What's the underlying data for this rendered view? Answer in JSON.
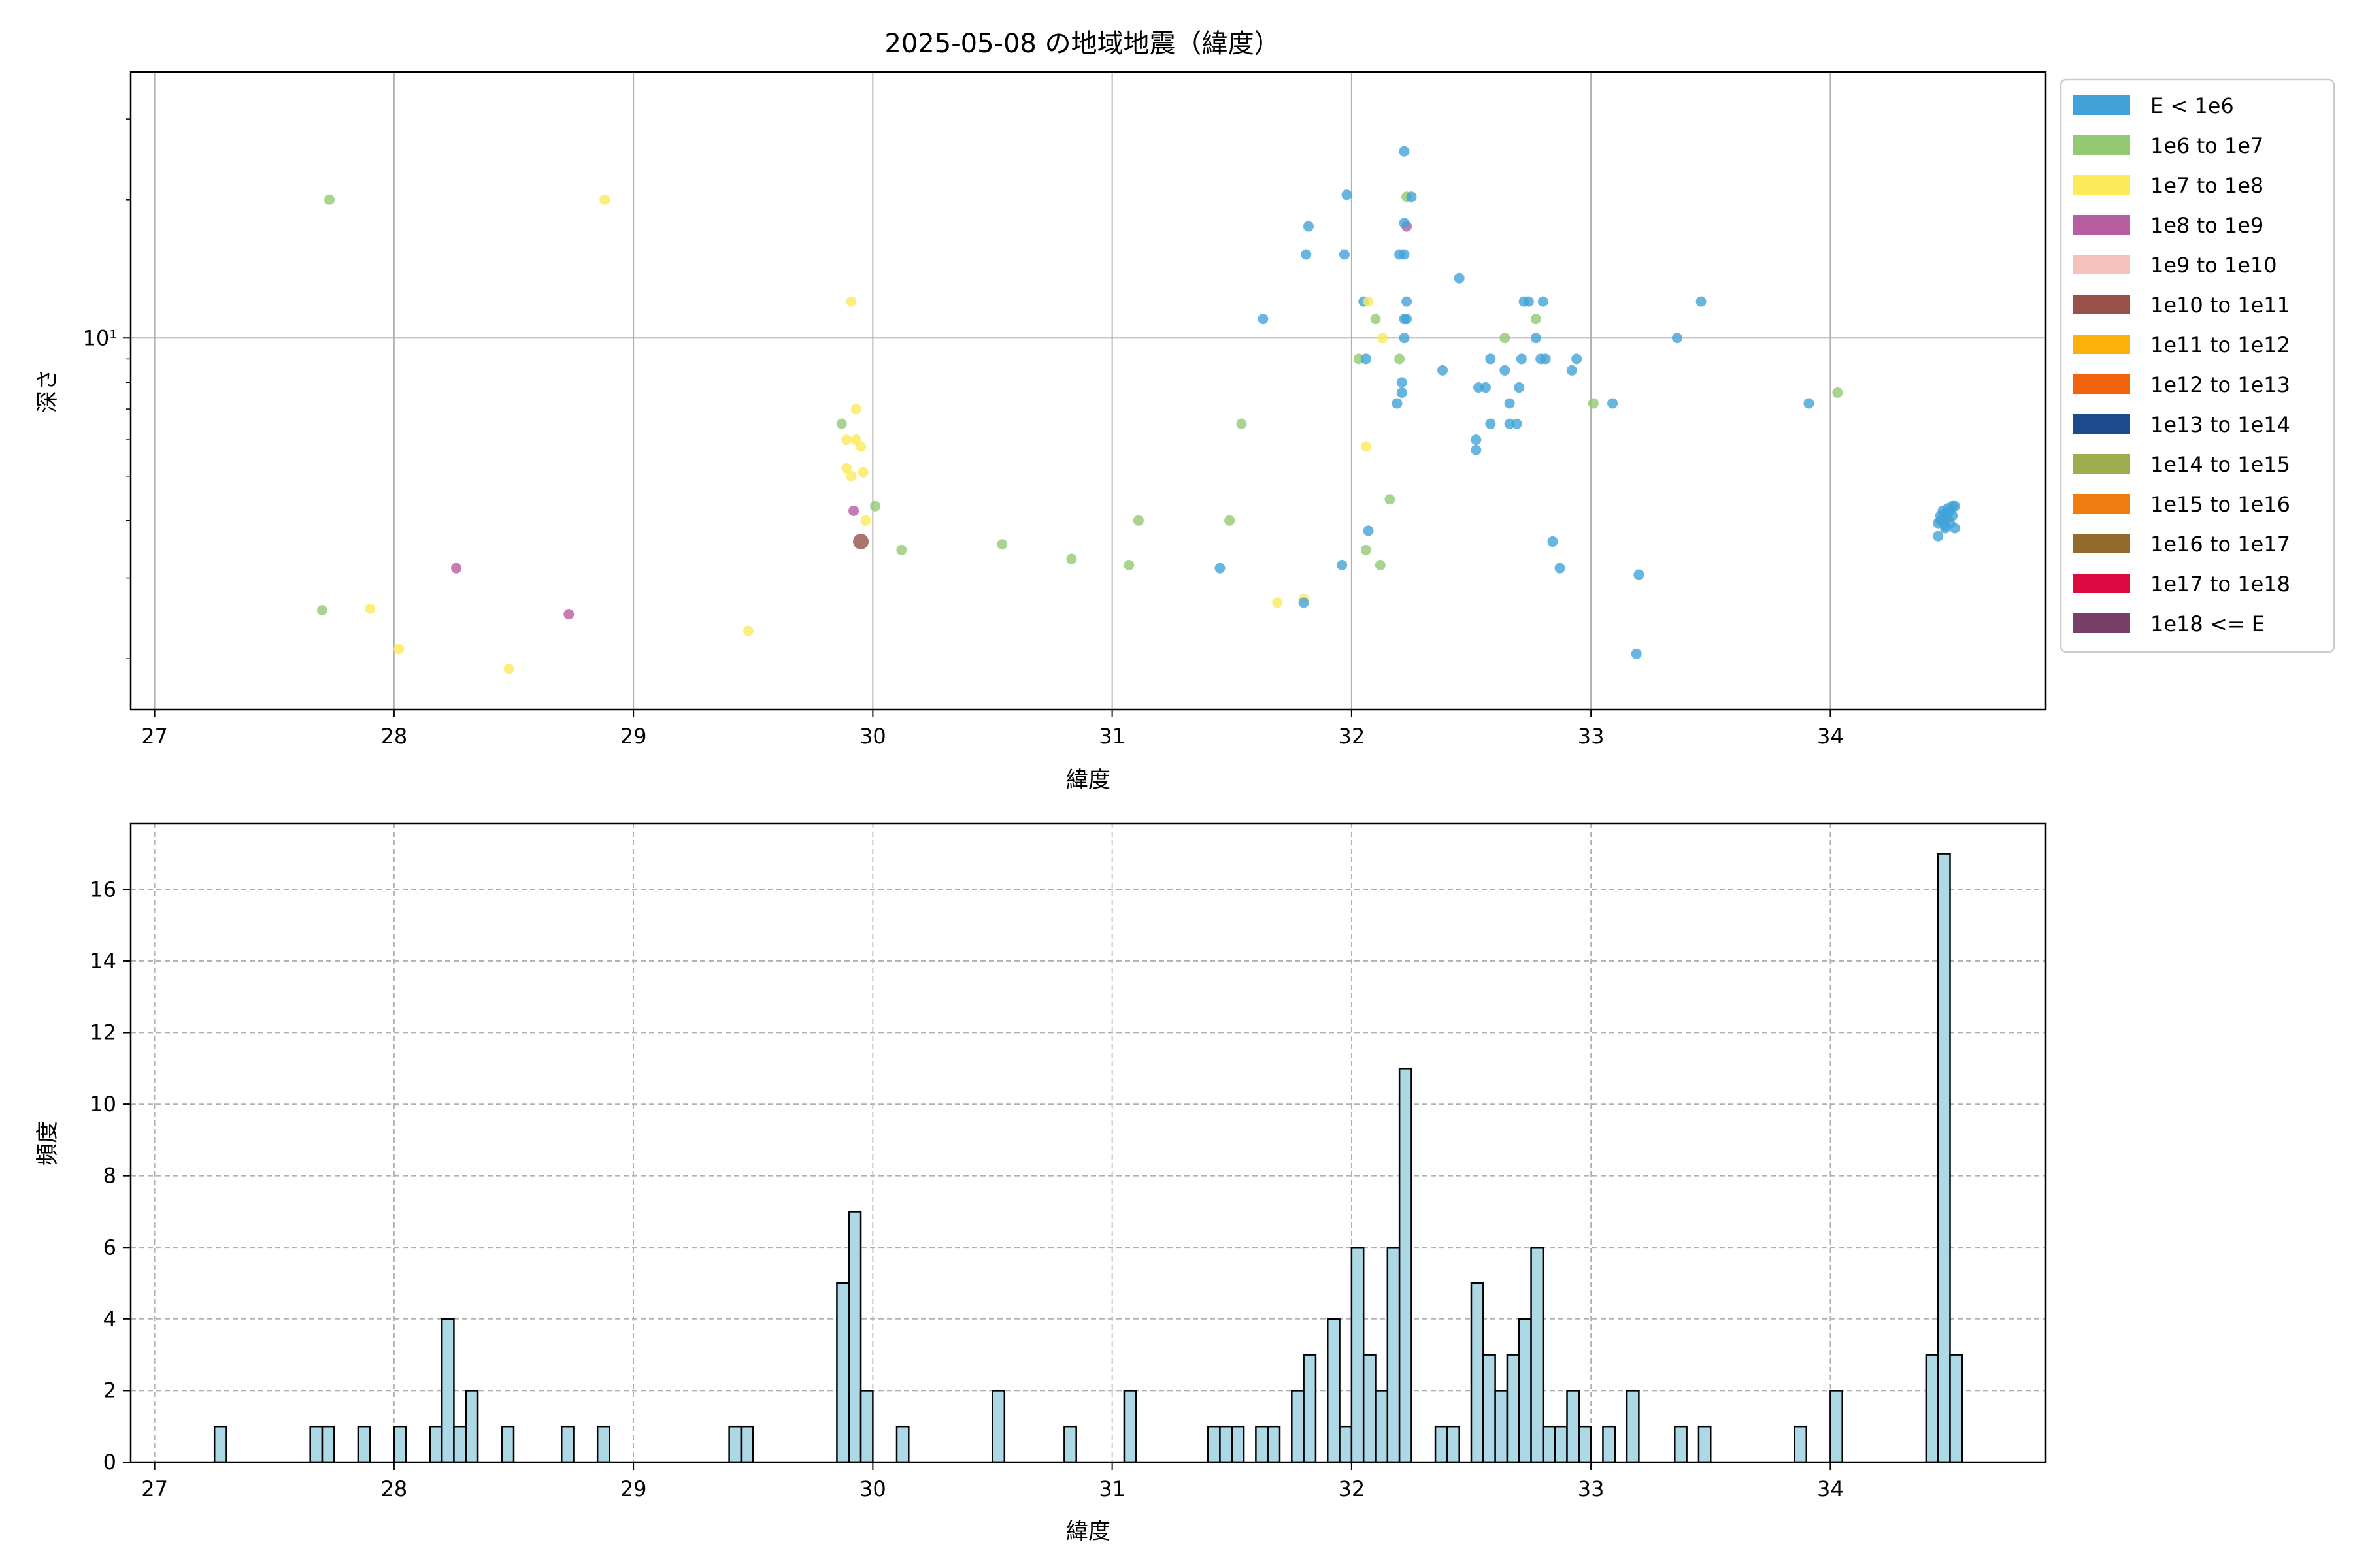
{
  "chart_data": [
    {
      "type": "scatter",
      "title": "2025-05-08 の地域地震（緯度）",
      "xlabel": "緯度",
      "ylabel": "深さ",
      "xlim": [
        26.9,
        34.9
      ],
      "ylim_log": [
        1.55,
        38
      ],
      "yscale": "log",
      "xticks": [
        27,
        28,
        29,
        30,
        31,
        32,
        33,
        34
      ],
      "yticks": [
        {
          "value": 10,
          "label": "10¹"
        }
      ],
      "grid": true,
      "legend_position": "outside-right",
      "legend": [
        {
          "label": "E < 1e6",
          "color": "#41a2da"
        },
        {
          "label": "1e6 to 1e7",
          "color": "#94c973"
        },
        {
          "label": "1e7 to 1e8",
          "color": "#fdea5b"
        },
        {
          "label": "1e8 to 1e9",
          "color": "#b65ea0"
        },
        {
          "label": "1e9 to 1e10",
          "color": "#f5c1bb"
        },
        {
          "label": "1e10 to 1e11",
          "color": "#985148"
        },
        {
          "label": "1e11 to 1e12",
          "color": "#fab20b"
        },
        {
          "label": "1e12 to 1e13",
          "color": "#f0640e"
        },
        {
          "label": "1e13 to 1e14",
          "color": "#1b4a8e"
        },
        {
          "label": "1e14 to 1e15",
          "color": "#9cac4e"
        },
        {
          "label": "1e15 to 1e16",
          "color": "#ef7e10"
        },
        {
          "label": "1e16 to 1e17",
          "color": "#926a2b"
        },
        {
          "label": "1e17 to 1e18",
          "color": "#dc0a40"
        },
        {
          "label": "1e18 <= E",
          "color": "#784069"
        }
      ],
      "points": [
        {
          "x": 27.73,
          "y": 20,
          "c": 1
        },
        {
          "x": 27.7,
          "y": 2.55,
          "c": 1
        },
        {
          "x": 27.9,
          "y": 2.57,
          "c": 2
        },
        {
          "x": 28.02,
          "y": 2.1,
          "c": 2
        },
        {
          "x": 28.26,
          "y": 3.15,
          "c": 3
        },
        {
          "x": 28.48,
          "y": 1.9,
          "c": 2
        },
        {
          "x": 28.73,
          "y": 2.5,
          "c": 3
        },
        {
          "x": 28.88,
          "y": 20,
          "c": 2
        },
        {
          "x": 29.48,
          "y": 2.3,
          "c": 2
        },
        {
          "x": 29.87,
          "y": 6.5,
          "c": 1
        },
        {
          "x": 29.91,
          "y": 12,
          "c": 2
        },
        {
          "x": 29.89,
          "y": 6,
          "c": 2
        },
        {
          "x": 29.93,
          "y": 6,
          "c": 2
        },
        {
          "x": 29.95,
          "y": 5.8,
          "c": 2
        },
        {
          "x": 29.93,
          "y": 7,
          "c": 2
        },
        {
          "x": 29.89,
          "y": 5.2,
          "c": 2
        },
        {
          "x": 29.91,
          "y": 5.0,
          "c": 2
        },
        {
          "x": 29.96,
          "y": 5.1,
          "c": 2
        },
        {
          "x": 29.92,
          "y": 4.2,
          "c": 3
        },
        {
          "x": 29.97,
          "y": 4.0,
          "c": 2
        },
        {
          "x": 30.01,
          "y": 4.3,
          "c": 1
        },
        {
          "x": 29.95,
          "y": 3.6,
          "c": 5,
          "big": true
        },
        {
          "x": 30.12,
          "y": 3.45,
          "c": 1
        },
        {
          "x": 30.54,
          "y": 3.55,
          "c": 1
        },
        {
          "x": 30.83,
          "y": 3.3,
          "c": 1
        },
        {
          "x": 31.07,
          "y": 3.2,
          "c": 1
        },
        {
          "x": 31.11,
          "y": 4.0,
          "c": 1
        },
        {
          "x": 31.45,
          "y": 3.15,
          "c": 0
        },
        {
          "x": 31.49,
          "y": 4.0,
          "c": 1
        },
        {
          "x": 31.54,
          "y": 6.5,
          "c": 1
        },
        {
          "x": 31.63,
          "y": 11,
          "c": 0
        },
        {
          "x": 31.69,
          "y": 2.65,
          "c": 2
        },
        {
          "x": 31.8,
          "y": 2.7,
          "c": 2
        },
        {
          "x": 31.8,
          "y": 2.65,
          "c": 0
        },
        {
          "x": 31.81,
          "y": 15.2,
          "c": 0
        },
        {
          "x": 31.82,
          "y": 17.5,
          "c": 0
        },
        {
          "x": 31.96,
          "y": 3.2,
          "c": 0
        },
        {
          "x": 31.97,
          "y": 15.2,
          "c": 0
        },
        {
          "x": 31.98,
          "y": 20.5,
          "c": 0
        },
        {
          "x": 32.03,
          "y": 9,
          "c": 1
        },
        {
          "x": 32.05,
          "y": 12,
          "c": 0
        },
        {
          "x": 32.06,
          "y": 9,
          "c": 0
        },
        {
          "x": 32.07,
          "y": 12,
          "c": 2
        },
        {
          "x": 32.06,
          "y": 5.8,
          "c": 2
        },
        {
          "x": 32.07,
          "y": 3.8,
          "c": 0
        },
        {
          "x": 32.06,
          "y": 3.45,
          "c": 1
        },
        {
          "x": 32.1,
          "y": 11,
          "c": 1
        },
        {
          "x": 32.13,
          "y": 10,
          "c": 2
        },
        {
          "x": 32.12,
          "y": 3.2,
          "c": 1
        },
        {
          "x": 32.16,
          "y": 4.45,
          "c": 1
        },
        {
          "x": 32.19,
          "y": 7.2,
          "c": 0
        },
        {
          "x": 32.2,
          "y": 15.2,
          "c": 0
        },
        {
          "x": 32.2,
          "y": 9,
          "c": 1
        },
        {
          "x": 32.21,
          "y": 7.6,
          "c": 0
        },
        {
          "x": 32.21,
          "y": 8,
          "c": 0
        },
        {
          "x": 32.22,
          "y": 10,
          "c": 0
        },
        {
          "x": 32.22,
          "y": 11,
          "c": 0
        },
        {
          "x": 32.23,
          "y": 11,
          "c": 0
        },
        {
          "x": 32.23,
          "y": 12,
          "c": 0
        },
        {
          "x": 32.22,
          "y": 15.2,
          "c": 0
        },
        {
          "x": 32.23,
          "y": 17.5,
          "c": 3
        },
        {
          "x": 32.22,
          "y": 17.8,
          "c": 0
        },
        {
          "x": 32.23,
          "y": 20.3,
          "c": 1
        },
        {
          "x": 32.25,
          "y": 20.3,
          "c": 0
        },
        {
          "x": 32.22,
          "y": 25.5,
          "c": 0
        },
        {
          "x": 32.38,
          "y": 8.5,
          "c": 0
        },
        {
          "x": 32.45,
          "y": 13.5,
          "c": 0
        },
        {
          "x": 32.52,
          "y": 6,
          "c": 0
        },
        {
          "x": 32.52,
          "y": 5.7,
          "c": 0
        },
        {
          "x": 32.53,
          "y": 7.8,
          "c": 0
        },
        {
          "x": 32.56,
          "y": 7.8,
          "c": 0
        },
        {
          "x": 32.58,
          "y": 6.5,
          "c": 0
        },
        {
          "x": 32.58,
          "y": 9,
          "c": 0
        },
        {
          "x": 32.64,
          "y": 8.5,
          "c": 0
        },
        {
          "x": 32.64,
          "y": 10,
          "c": 1
        },
        {
          "x": 32.66,
          "y": 7.2,
          "c": 0
        },
        {
          "x": 32.66,
          "y": 6.5,
          "c": 0
        },
        {
          "x": 32.69,
          "y": 6.5,
          "c": 0
        },
        {
          "x": 32.71,
          "y": 9,
          "c": 0
        },
        {
          "x": 32.7,
          "y": 7.8,
          "c": 0
        },
        {
          "x": 32.72,
          "y": 12,
          "c": 0
        },
        {
          "x": 32.74,
          "y": 12,
          "c": 0
        },
        {
          "x": 32.77,
          "y": 10,
          "c": 0
        },
        {
          "x": 32.77,
          "y": 11,
          "c": 1
        },
        {
          "x": 32.79,
          "y": 9,
          "c": 0
        },
        {
          "x": 32.8,
          "y": 12,
          "c": 0
        },
        {
          "x": 32.81,
          "y": 9,
          "c": 0
        },
        {
          "x": 32.84,
          "y": 3.6,
          "c": 0
        },
        {
          "x": 32.87,
          "y": 3.15,
          "c": 0
        },
        {
          "x": 32.92,
          "y": 8.5,
          "c": 0
        },
        {
          "x": 32.94,
          "y": 9,
          "c": 0
        },
        {
          "x": 33.01,
          "y": 7.2,
          "c": 1
        },
        {
          "x": 33.09,
          "y": 7.2,
          "c": 0
        },
        {
          "x": 33.19,
          "y": 2.05,
          "c": 0
        },
        {
          "x": 33.2,
          "y": 3.05,
          "c": 0
        },
        {
          "x": 33.36,
          "y": 10,
          "c": 0
        },
        {
          "x": 33.46,
          "y": 12,
          "c": 0
        },
        {
          "x": 33.91,
          "y": 7.2,
          "c": 0
        },
        {
          "x": 34.03,
          "y": 7.6,
          "c": 1
        },
        {
          "x": 34.45,
          "y": 3.7,
          "c": 0
        },
        {
          "x": 34.45,
          "y": 3.95,
          "c": 0
        },
        {
          "x": 34.46,
          "y": 4.1,
          "c": 0
        },
        {
          "x": 34.47,
          "y": 4.0,
          "c": 0
        },
        {
          "x": 34.48,
          "y": 3.9,
          "c": 0
        },
        {
          "x": 34.48,
          "y": 4.15,
          "c": 0
        },
        {
          "x": 34.49,
          "y": 4.05,
          "c": 0
        },
        {
          "x": 34.5,
          "y": 3.95,
          "c": 0
        },
        {
          "x": 34.51,
          "y": 4.1,
          "c": 0
        },
        {
          "x": 34.51,
          "y": 4.3,
          "c": 0
        },
        {
          "x": 34.52,
          "y": 3.85,
          "c": 0
        },
        {
          "x": 34.52,
          "y": 4.3,
          "c": 0
        },
        {
          "x": 34.47,
          "y": 4.2,
          "c": 0
        },
        {
          "x": 34.46,
          "y": 4.0,
          "c": 0
        },
        {
          "x": 34.49,
          "y": 4.25,
          "c": 0
        },
        {
          "x": 34.5,
          "y": 4.2,
          "c": 0
        },
        {
          "x": 34.48,
          "y": 3.85,
          "c": 0
        }
      ]
    },
    {
      "type": "bar",
      "title": "",
      "xlabel": "緯度",
      "ylabel": "頻度",
      "xlim": [
        26.9,
        34.9
      ],
      "ylim": [
        0,
        17.85
      ],
      "xticks": [
        27,
        28,
        29,
        30,
        31,
        32,
        33,
        34
      ],
      "yticks": [
        0,
        2,
        4,
        6,
        8,
        10,
        12,
        14,
        16
      ],
      "grid": true,
      "bar_color": "#add8e6",
      "bin_width": 0.05,
      "bins": [
        {
          "x": 27.25,
          "v": 1
        },
        {
          "x": 27.65,
          "v": 1
        },
        {
          "x": 27.7,
          "v": 1
        },
        {
          "x": 27.85,
          "v": 1
        },
        {
          "x": 28.0,
          "v": 1
        },
        {
          "x": 28.15,
          "v": 1
        },
        {
          "x": 28.2,
          "v": 4
        },
        {
          "x": 28.25,
          "v": 1
        },
        {
          "x": 28.3,
          "v": 2
        },
        {
          "x": 28.45,
          "v": 1
        },
        {
          "x": 28.7,
          "v": 1
        },
        {
          "x": 28.85,
          "v": 1
        },
        {
          "x": 29.4,
          "v": 1
        },
        {
          "x": 29.45,
          "v": 1
        },
        {
          "x": 29.85,
          "v": 5
        },
        {
          "x": 29.9,
          "v": 7
        },
        {
          "x": 29.95,
          "v": 2
        },
        {
          "x": 30.1,
          "v": 1
        },
        {
          "x": 30.5,
          "v": 2
        },
        {
          "x": 30.8,
          "v": 1
        },
        {
          "x": 31.05,
          "v": 2
        },
        {
          "x": 31.4,
          "v": 1
        },
        {
          "x": 31.45,
          "v": 1
        },
        {
          "x": 31.5,
          "v": 1
        },
        {
          "x": 31.6,
          "v": 1
        },
        {
          "x": 31.65,
          "v": 1
        },
        {
          "x": 31.75,
          "v": 2
        },
        {
          "x": 31.8,
          "v": 3
        },
        {
          "x": 31.9,
          "v": 4
        },
        {
          "x": 31.95,
          "v": 1
        },
        {
          "x": 32.0,
          "v": 6
        },
        {
          "x": 32.05,
          "v": 3
        },
        {
          "x": 32.1,
          "v": 2
        },
        {
          "x": 32.15,
          "v": 6
        },
        {
          "x": 32.2,
          "v": 11
        },
        {
          "x": 32.35,
          "v": 1
        },
        {
          "x": 32.4,
          "v": 1
        },
        {
          "x": 32.5,
          "v": 5
        },
        {
          "x": 32.55,
          "v": 3
        },
        {
          "x": 32.6,
          "v": 2
        },
        {
          "x": 32.65,
          "v": 3
        },
        {
          "x": 32.7,
          "v": 4
        },
        {
          "x": 32.75,
          "v": 6
        },
        {
          "x": 32.8,
          "v": 1
        },
        {
          "x": 32.85,
          "v": 1
        },
        {
          "x": 32.9,
          "v": 2
        },
        {
          "x": 32.95,
          "v": 1
        },
        {
          "x": 33.05,
          "v": 1
        },
        {
          "x": 33.15,
          "v": 2
        },
        {
          "x": 33.35,
          "v": 1
        },
        {
          "x": 33.45,
          "v": 1
        },
        {
          "x": 33.85,
          "v": 1
        },
        {
          "x": 34.0,
          "v": 2
        },
        {
          "x": 34.4,
          "v": 3
        },
        {
          "x": 34.45,
          "v": 17
        },
        {
          "x": 34.5,
          "v": 3
        }
      ]
    }
  ]
}
